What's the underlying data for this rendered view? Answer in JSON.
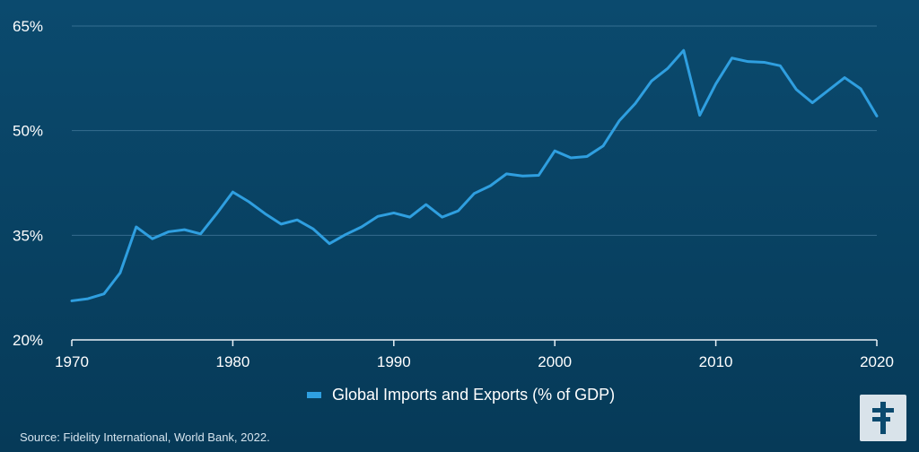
{
  "chart_data": {
    "type": "line",
    "x": [
      1970,
      1971,
      1972,
      1973,
      1974,
      1975,
      1976,
      1977,
      1978,
      1979,
      1980,
      1981,
      1982,
      1983,
      1984,
      1985,
      1986,
      1987,
      1988,
      1989,
      1990,
      1991,
      1992,
      1993,
      1994,
      1995,
      1996,
      1997,
      1998,
      1999,
      2000,
      2001,
      2002,
      2003,
      2004,
      2005,
      2006,
      2007,
      2008,
      2009,
      2010,
      2011,
      2012,
      2013,
      2014,
      2015,
      2016,
      2017,
      2018,
      2019,
      2020
    ],
    "series": [
      {
        "name": "Global Imports and Exports (% of GDP)",
        "values": [
          25.6,
          25.9,
          26.6,
          29.6,
          36.2,
          34.5,
          35.5,
          35.8,
          35.2,
          38.1,
          41.2,
          39.8,
          38.1,
          36.6,
          37.2,
          35.9,
          33.8,
          35.1,
          36.2,
          37.7,
          38.2,
          37.6,
          39.4,
          37.6,
          38.5,
          41.0,
          42.1,
          43.8,
          43.5,
          43.6,
          47.1,
          46.1,
          46.3,
          47.8,
          51.4,
          53.9,
          57.1,
          58.9,
          61.5,
          52.2,
          56.7,
          60.4,
          59.9,
          59.8,
          59.3,
          55.9,
          54.0,
          55.8,
          57.6,
          56.0,
          52.1
        ]
      }
    ],
    "xlabel": "",
    "ylabel": "",
    "xlim": [
      1970,
      2020
    ],
    "ylim": [
      20,
      65
    ],
    "x_ticks": [
      "1970",
      "1980",
      "1990",
      "2000",
      "2010",
      "2020"
    ],
    "y_ticks": [
      "20%",
      "35%",
      "50%",
      "65%"
    ],
    "grid": "horizontal",
    "legend_position": "bottom-center",
    "colors": {
      "line": "#2f9fe0",
      "background": "#0b4a6e",
      "grid": "#5a8fb0",
      "axis": "#e8f1f7"
    }
  },
  "source": "Source: Fidelity International, World Bank, 2022.",
  "logo": {
    "icon": "fidelity-logo-icon",
    "background": "#d9e3ea",
    "color": "#0b4a6e"
  }
}
